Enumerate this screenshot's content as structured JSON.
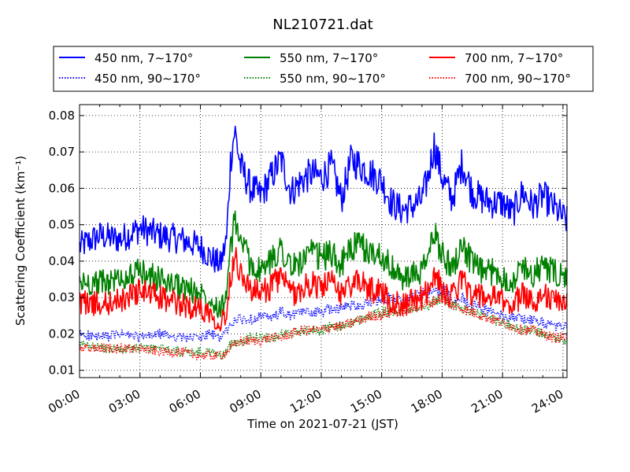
{
  "chart_data": {
    "type": "line",
    "title": "NL210721.dat",
    "xlabel": "Time on 2021-07-21 (JST)",
    "ylabel": "Scattering Coefficient (km⁻¹)",
    "x_tick_labels": [
      "00:00",
      "03:00",
      "06:00",
      "09:00",
      "12:00",
      "15:00",
      "18:00",
      "21:00",
      "24:00"
    ],
    "x_tick_hours": [
      0,
      3,
      6,
      9,
      12,
      15,
      18,
      21,
      24
    ],
    "xlim_hours": [
      0,
      24.2
    ],
    "y_ticks": [
      0.01,
      0.02,
      0.03,
      0.04,
      0.05,
      0.06,
      0.07,
      0.08
    ],
    "y_tick_labels": [
      "0.01",
      "0.02",
      "0.03",
      "0.04",
      "0.05",
      "0.06",
      "0.07",
      "0.08"
    ],
    "ylim": [
      0.008,
      0.083
    ],
    "grid": true,
    "legend_position": "top, outside plot",
    "x_hours": [
      0,
      1,
      2,
      3,
      4,
      5,
      6,
      6.5,
      7,
      7.3,
      7.5,
      7.7,
      8,
      8.5,
      9,
      9.5,
      10,
      10.5,
      11,
      11.5,
      12,
      12.5,
      13,
      13.5,
      14,
      14.5,
      15,
      15.5,
      16,
      16.5,
      17,
      17.3,
      17.6,
      18,
      18.5,
      19,
      19.5,
      20,
      20.5,
      21,
      21.5,
      22,
      22.5,
      23,
      23.5,
      24.2
    ],
    "series": [
      {
        "name": "450 nm, 7∼170°",
        "color": "#0000ff",
        "style": "solid",
        "values": [
          0.044,
          0.047,
          0.046,
          0.049,
          0.047,
          0.046,
          0.044,
          0.041,
          0.039,
          0.046,
          0.068,
          0.076,
          0.066,
          0.06,
          0.058,
          0.063,
          0.068,
          0.059,
          0.062,
          0.064,
          0.063,
          0.066,
          0.057,
          0.068,
          0.066,
          0.064,
          0.062,
          0.056,
          0.054,
          0.055,
          0.057,
          0.063,
          0.072,
          0.063,
          0.057,
          0.067,
          0.059,
          0.057,
          0.056,
          0.056,
          0.053,
          0.059,
          0.055,
          0.058,
          0.055,
          0.051
        ]
      },
      {
        "name": "450 nm, 90∼170°",
        "color": "#0000ff",
        "style": "dotted",
        "values": [
          0.02,
          0.019,
          0.02,
          0.019,
          0.02,
          0.019,
          0.019,
          0.02,
          0.019,
          0.021,
          0.022,
          0.024,
          0.024,
          0.024,
          0.025,
          0.024,
          0.026,
          0.025,
          0.026,
          0.026,
          0.026,
          0.027,
          0.027,
          0.028,
          0.028,
          0.029,
          0.029,
          0.03,
          0.029,
          0.03,
          0.031,
          0.031,
          0.032,
          0.032,
          0.03,
          0.03,
          0.028,
          0.027,
          0.026,
          0.025,
          0.025,
          0.024,
          0.024,
          0.023,
          0.022,
          0.022
        ]
      },
      {
        "name": "550 nm, 7∼170°",
        "color": "#008000",
        "style": "solid",
        "values": [
          0.034,
          0.034,
          0.035,
          0.037,
          0.035,
          0.033,
          0.031,
          0.03,
          0.027,
          0.031,
          0.043,
          0.051,
          0.046,
          0.039,
          0.037,
          0.04,
          0.044,
          0.038,
          0.04,
          0.042,
          0.041,
          0.042,
          0.039,
          0.044,
          0.044,
          0.042,
          0.042,
          0.038,
          0.035,
          0.036,
          0.037,
          0.041,
          0.048,
          0.042,
          0.038,
          0.045,
          0.039,
          0.037,
          0.037,
          0.036,
          0.034,
          0.039,
          0.036,
          0.039,
          0.037,
          0.035
        ]
      },
      {
        "name": "550 nm, 90∼170°",
        "color": "#008000",
        "style": "dotted",
        "values": [
          0.017,
          0.016,
          0.016,
          0.016,
          0.016,
          0.015,
          0.015,
          0.015,
          0.014,
          0.015,
          0.017,
          0.018,
          0.018,
          0.019,
          0.019,
          0.019,
          0.02,
          0.02,
          0.021,
          0.021,
          0.021,
          0.022,
          0.022,
          0.023,
          0.024,
          0.025,
          0.026,
          0.026,
          0.026,
          0.027,
          0.028,
          0.028,
          0.029,
          0.03,
          0.028,
          0.027,
          0.026,
          0.025,
          0.024,
          0.023,
          0.022,
          0.021,
          0.021,
          0.02,
          0.019,
          0.018
        ]
      },
      {
        "name": "700 nm, 7∼170°",
        "color": "#ff0000",
        "style": "solid",
        "values": [
          0.029,
          0.028,
          0.029,
          0.032,
          0.03,
          0.028,
          0.027,
          0.026,
          0.023,
          0.026,
          0.036,
          0.042,
          0.037,
          0.032,
          0.031,
          0.033,
          0.036,
          0.031,
          0.032,
          0.034,
          0.033,
          0.034,
          0.031,
          0.034,
          0.034,
          0.032,
          0.032,
          0.029,
          0.028,
          0.029,
          0.03,
          0.032,
          0.037,
          0.032,
          0.03,
          0.035,
          0.031,
          0.03,
          0.03,
          0.029,
          0.028,
          0.031,
          0.029,
          0.031,
          0.029,
          0.029
        ]
      },
      {
        "name": "700 nm, 90∼170°",
        "color": "#ff0000",
        "style": "dotted",
        "values": [
          0.016,
          0.016,
          0.016,
          0.016,
          0.015,
          0.015,
          0.014,
          0.014,
          0.014,
          0.015,
          0.016,
          0.017,
          0.018,
          0.018,
          0.018,
          0.019,
          0.019,
          0.02,
          0.021,
          0.021,
          0.021,
          0.022,
          0.022,
          0.023,
          0.024,
          0.025,
          0.025,
          0.026,
          0.026,
          0.027,
          0.028,
          0.028,
          0.029,
          0.03,
          0.028,
          0.027,
          0.026,
          0.025,
          0.024,
          0.023,
          0.022,
          0.021,
          0.021,
          0.02,
          0.019,
          0.019
        ]
      }
    ]
  }
}
